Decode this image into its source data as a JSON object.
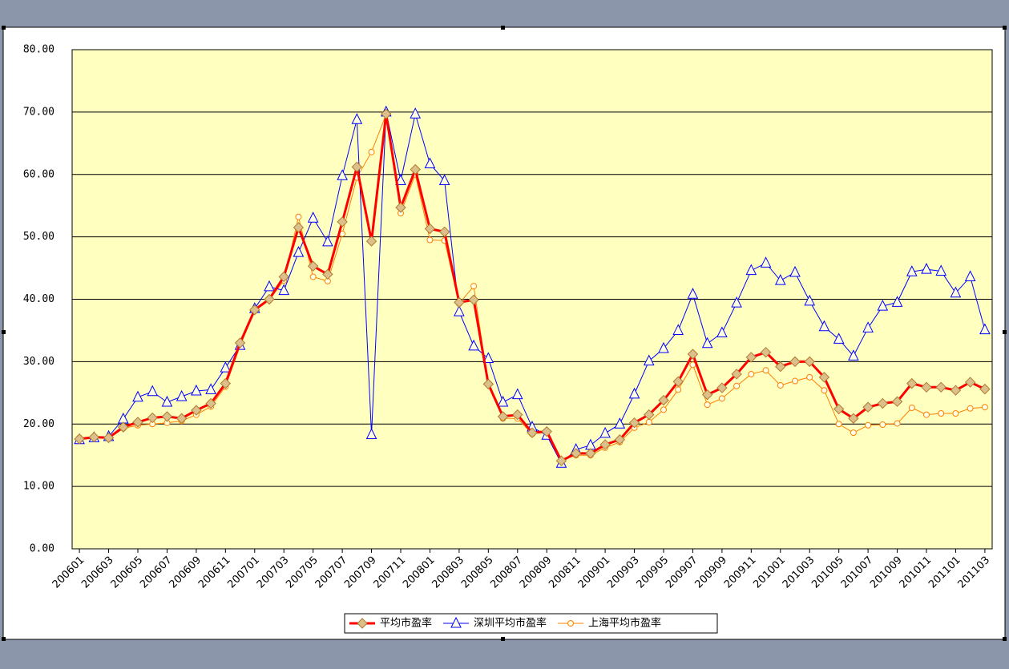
{
  "chart_data": {
    "type": "line",
    "categories": [
      "200601",
      null,
      "200603",
      null,
      "200605",
      null,
      "200607",
      null,
      "200609",
      null,
      "200611",
      null,
      "200701",
      null,
      "200703",
      null,
      "200705",
      null,
      "200707",
      null,
      "200709",
      null,
      "200711",
      null,
      "200801",
      null,
      "200803",
      null,
      "200805",
      null,
      "200807",
      null,
      "200809",
      null,
      "200811",
      null,
      "200901",
      null,
      "200903",
      null,
      "200905",
      null,
      "200907",
      null,
      "200909",
      null,
      "200911",
      null,
      "201001",
      null,
      "201003",
      null,
      "201005",
      null,
      "201007",
      null,
      "201009",
      null,
      "201011",
      null,
      "201101",
      null,
      "201103"
    ],
    "series": [
      {
        "name": "平均市盈率",
        "color": "#ff0000",
        "marker": "diamond",
        "values": [
          17.6,
          17.9,
          17.8,
          19.5,
          20.3,
          21.0,
          21.2,
          20.9,
          22.2,
          23.3,
          26.5,
          33.0,
          38.3,
          40.0,
          43.6,
          51.5,
          45.3,
          44.0,
          52.4,
          61.2,
          49.3,
          69.7,
          54.7,
          60.8,
          51.3,
          50.8,
          39.5,
          39.9,
          26.4,
          21.2,
          21.5,
          18.6,
          18.8,
          14.1,
          15.3,
          15.3,
          16.7,
          17.5,
          20.2,
          21.5,
          23.8,
          26.8,
          31.2,
          24.7,
          25.8,
          28.0,
          30.7,
          31.5,
          29.2,
          30.0,
          30.0,
          27.5,
          22.4,
          20.9,
          22.7,
          23.3,
          23.6,
          26.5,
          25.9,
          25.9,
          25.4,
          26.7,
          25.6
        ]
      },
      {
        "name": "深圳平均市盈率",
        "color": "#0000ff",
        "marker": "triangle",
        "values": [
          17.5,
          17.8,
          18.0,
          20.8,
          24.3,
          25.2,
          23.5,
          24.4,
          25.3,
          25.5,
          29.0,
          32.6,
          38.5,
          42.0,
          41.4,
          47.5,
          53.0,
          49.2,
          59.8,
          68.8,
          18.3,
          70.0,
          59.0,
          69.7,
          61.7,
          59.0,
          38.0,
          32.5,
          30.5,
          23.5,
          24.7,
          19.5,
          18.2,
          13.7,
          15.9,
          16.6,
          18.5,
          20.0,
          24.8,
          30.1,
          32.1,
          35.0,
          40.8,
          32.9,
          34.6,
          39.4,
          44.6,
          45.8,
          43.0,
          44.3,
          39.7,
          35.6,
          33.6,
          30.9,
          35.4,
          38.9,
          39.5,
          44.4,
          44.8,
          44.5,
          41.0,
          43.6,
          35.1
        ]
      },
      {
        "name": "上海平均市盈率",
        "color": "#ff8000",
        "marker": "circle",
        "values": [
          17.8,
          17.9,
          17.7,
          19.3,
          19.8,
          20.0,
          20.2,
          20.5,
          21.5,
          22.8,
          26.0,
          32.5,
          38.2,
          39.9,
          43.0,
          53.2,
          43.6,
          42.9,
          50.5,
          59.5,
          63.6,
          69.6,
          53.8,
          60.0,
          49.5,
          49.4,
          39.3,
          42.1,
          26.3,
          20.9,
          20.9,
          18.4,
          18.8,
          14.2,
          15.0,
          15.0,
          16.2,
          17.1,
          19.4,
          20.3,
          22.3,
          25.5,
          29.5,
          23.1,
          24.1,
          26.1,
          28.0,
          28.6,
          26.2,
          26.9,
          27.5,
          25.4,
          20.0,
          18.6,
          19.8,
          19.9,
          20.1,
          22.6,
          21.5,
          21.7,
          21.7,
          22.5,
          22.7
        ]
      }
    ],
    "ylim": [
      0,
      80
    ],
    "yticks": [
      {
        "value": 0,
        "label": "0.00"
      },
      {
        "value": 10,
        "label": "10.00"
      },
      {
        "value": 20,
        "label": "20.00"
      },
      {
        "value": 30,
        "label": "30.00"
      },
      {
        "value": 40,
        "label": "40.00"
      },
      {
        "value": 50,
        "label": "50.00"
      },
      {
        "value": 60,
        "label": "60.00"
      },
      {
        "value": 70,
        "label": "70.00"
      },
      {
        "value": 80,
        "label": "80.00"
      }
    ],
    "grid": true,
    "legend": "bottom"
  }
}
